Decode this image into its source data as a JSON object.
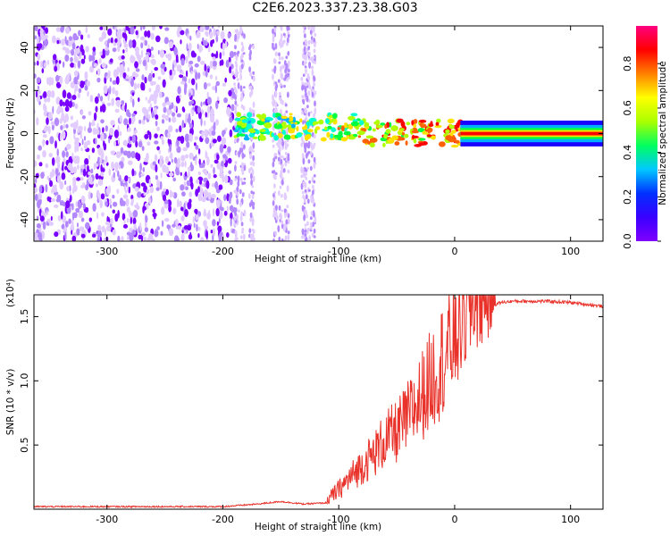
{
  "title": "C2E6.2023.337.23.38.G03",
  "chart_data": [
    {
      "type": "heatmap",
      "xlabel": "Height of straight line (km)",
      "ylabel": "Frequency (Hz)",
      "xlim": [
        -363,
        128
      ],
      "ylim": [
        -50,
        50
      ],
      "xticks": [
        "-300",
        "-200",
        "-100",
        "0",
        "100"
      ],
      "xtick_values": [
        -300,
        -200,
        -100,
        0,
        100
      ],
      "yticks": [
        "40",
        "20",
        "0",
        "-20",
        "-40"
      ],
      "ytick_values": [
        40,
        20,
        0,
        -20,
        -40
      ],
      "colorbar": {
        "label": "Normalized spectral amplitude",
        "ticks": [
          "0.0",
          "0.2",
          "0.4",
          "0.6",
          "0.8"
        ],
        "tick_values": [
          0,
          0.2,
          0.4,
          0.6,
          0.8
        ],
        "range": [
          0,
          0.97
        ],
        "colors": [
          "#ffffff",
          "#e6ccff",
          "#7f00ff",
          "#0000ff",
          "#00ffff",
          "#00ff00",
          "#ffff00",
          "#ff7f00",
          "#ff0000",
          "#ff00aa"
        ]
      },
      "regions": [
        {
          "x_range": [
            -363,
            -190
          ],
          "description": "broadband noise"
        },
        {
          "x_range": [
            -190,
            5
          ],
          "center_hz": 0,
          "description": "narrowband signal emerging"
        },
        {
          "x_range": [
            5,
            128
          ],
          "center_hz": 0,
          "peak_amplitude": 0.9
        }
      ]
    },
    {
      "type": "line",
      "xlabel": "Height of straight line (km)",
      "ylabel": "SNR (10 * v/v)",
      "y_multiplier": "(x10⁴)",
      "xlim": [
        -363,
        128
      ],
      "ylim": [
        0,
        1.67
      ],
      "xticks": [
        "-300",
        "-200",
        "-100",
        "0",
        "100"
      ],
      "xtick_values": [
        -300,
        -200,
        -100,
        0,
        100
      ],
      "yticks": [
        "1.5",
        "1.0",
        "0.5"
      ],
      "ytick_values": [
        1.5,
        1.0,
        0.5
      ],
      "color": "#e8322a",
      "series": [
        {
          "x": [
            -363,
            -300,
            -200,
            -170,
            -150,
            -130,
            -110,
            -100,
            -90,
            -80,
            -70,
            -60,
            -50,
            -40,
            -30,
            -20,
            -10,
            0,
            10,
            20,
            30,
            40,
            50,
            60,
            80,
            100,
            128
          ],
          "y": [
            0.02,
            0.02,
            0.02,
            0.04,
            0.06,
            0.04,
            0.05,
            0.12,
            0.2,
            0.28,
            0.35,
            0.45,
            0.5,
            0.6,
            0.72,
            0.85,
            1.0,
            1.15,
            1.35,
            1.5,
            1.58,
            1.61,
            1.62,
            1.62,
            1.62,
            1.61,
            1.58
          ]
        }
      ]
    }
  ]
}
